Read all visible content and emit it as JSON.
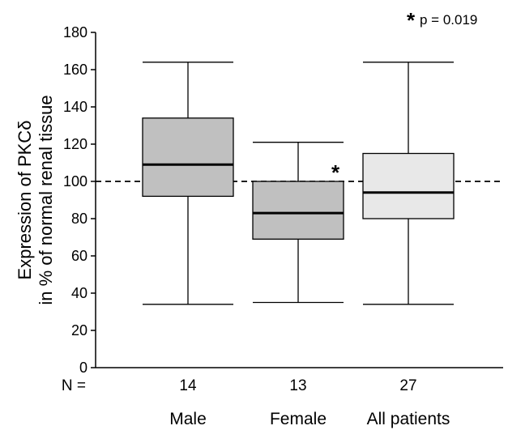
{
  "chart_data": {
    "type": "boxplot",
    "title": "",
    "ylabel_line1": "Expression of  PKCδ",
    "ylabel_line2": "in % of normal renal tissue",
    "xlabel": "",
    "ylim": [
      0,
      180
    ],
    "yticks": [
      0,
      20,
      40,
      60,
      80,
      100,
      120,
      140,
      160,
      180
    ],
    "reference_line": {
      "y": 100,
      "style": "dashed"
    },
    "n_label": "N =",
    "significance": {
      "marker": "*",
      "text": "p = 0.019",
      "marked_group": "Female"
    },
    "groups": [
      {
        "name": "Male",
        "n": "14",
        "min": 34,
        "q1": 92,
        "median": 109,
        "q3": 134,
        "max": 164,
        "fill": "#c0c0c0"
      },
      {
        "name": "Female",
        "n": "13",
        "min": 35,
        "q1": 69,
        "median": 83,
        "q3": 100,
        "max": 121,
        "fill": "#c0c0c0"
      },
      {
        "name": "All patients",
        "n": "27",
        "min": 34,
        "q1": 80,
        "median": 94,
        "q3": 115,
        "max": 164,
        "fill": "#e8e8e8"
      }
    ]
  }
}
